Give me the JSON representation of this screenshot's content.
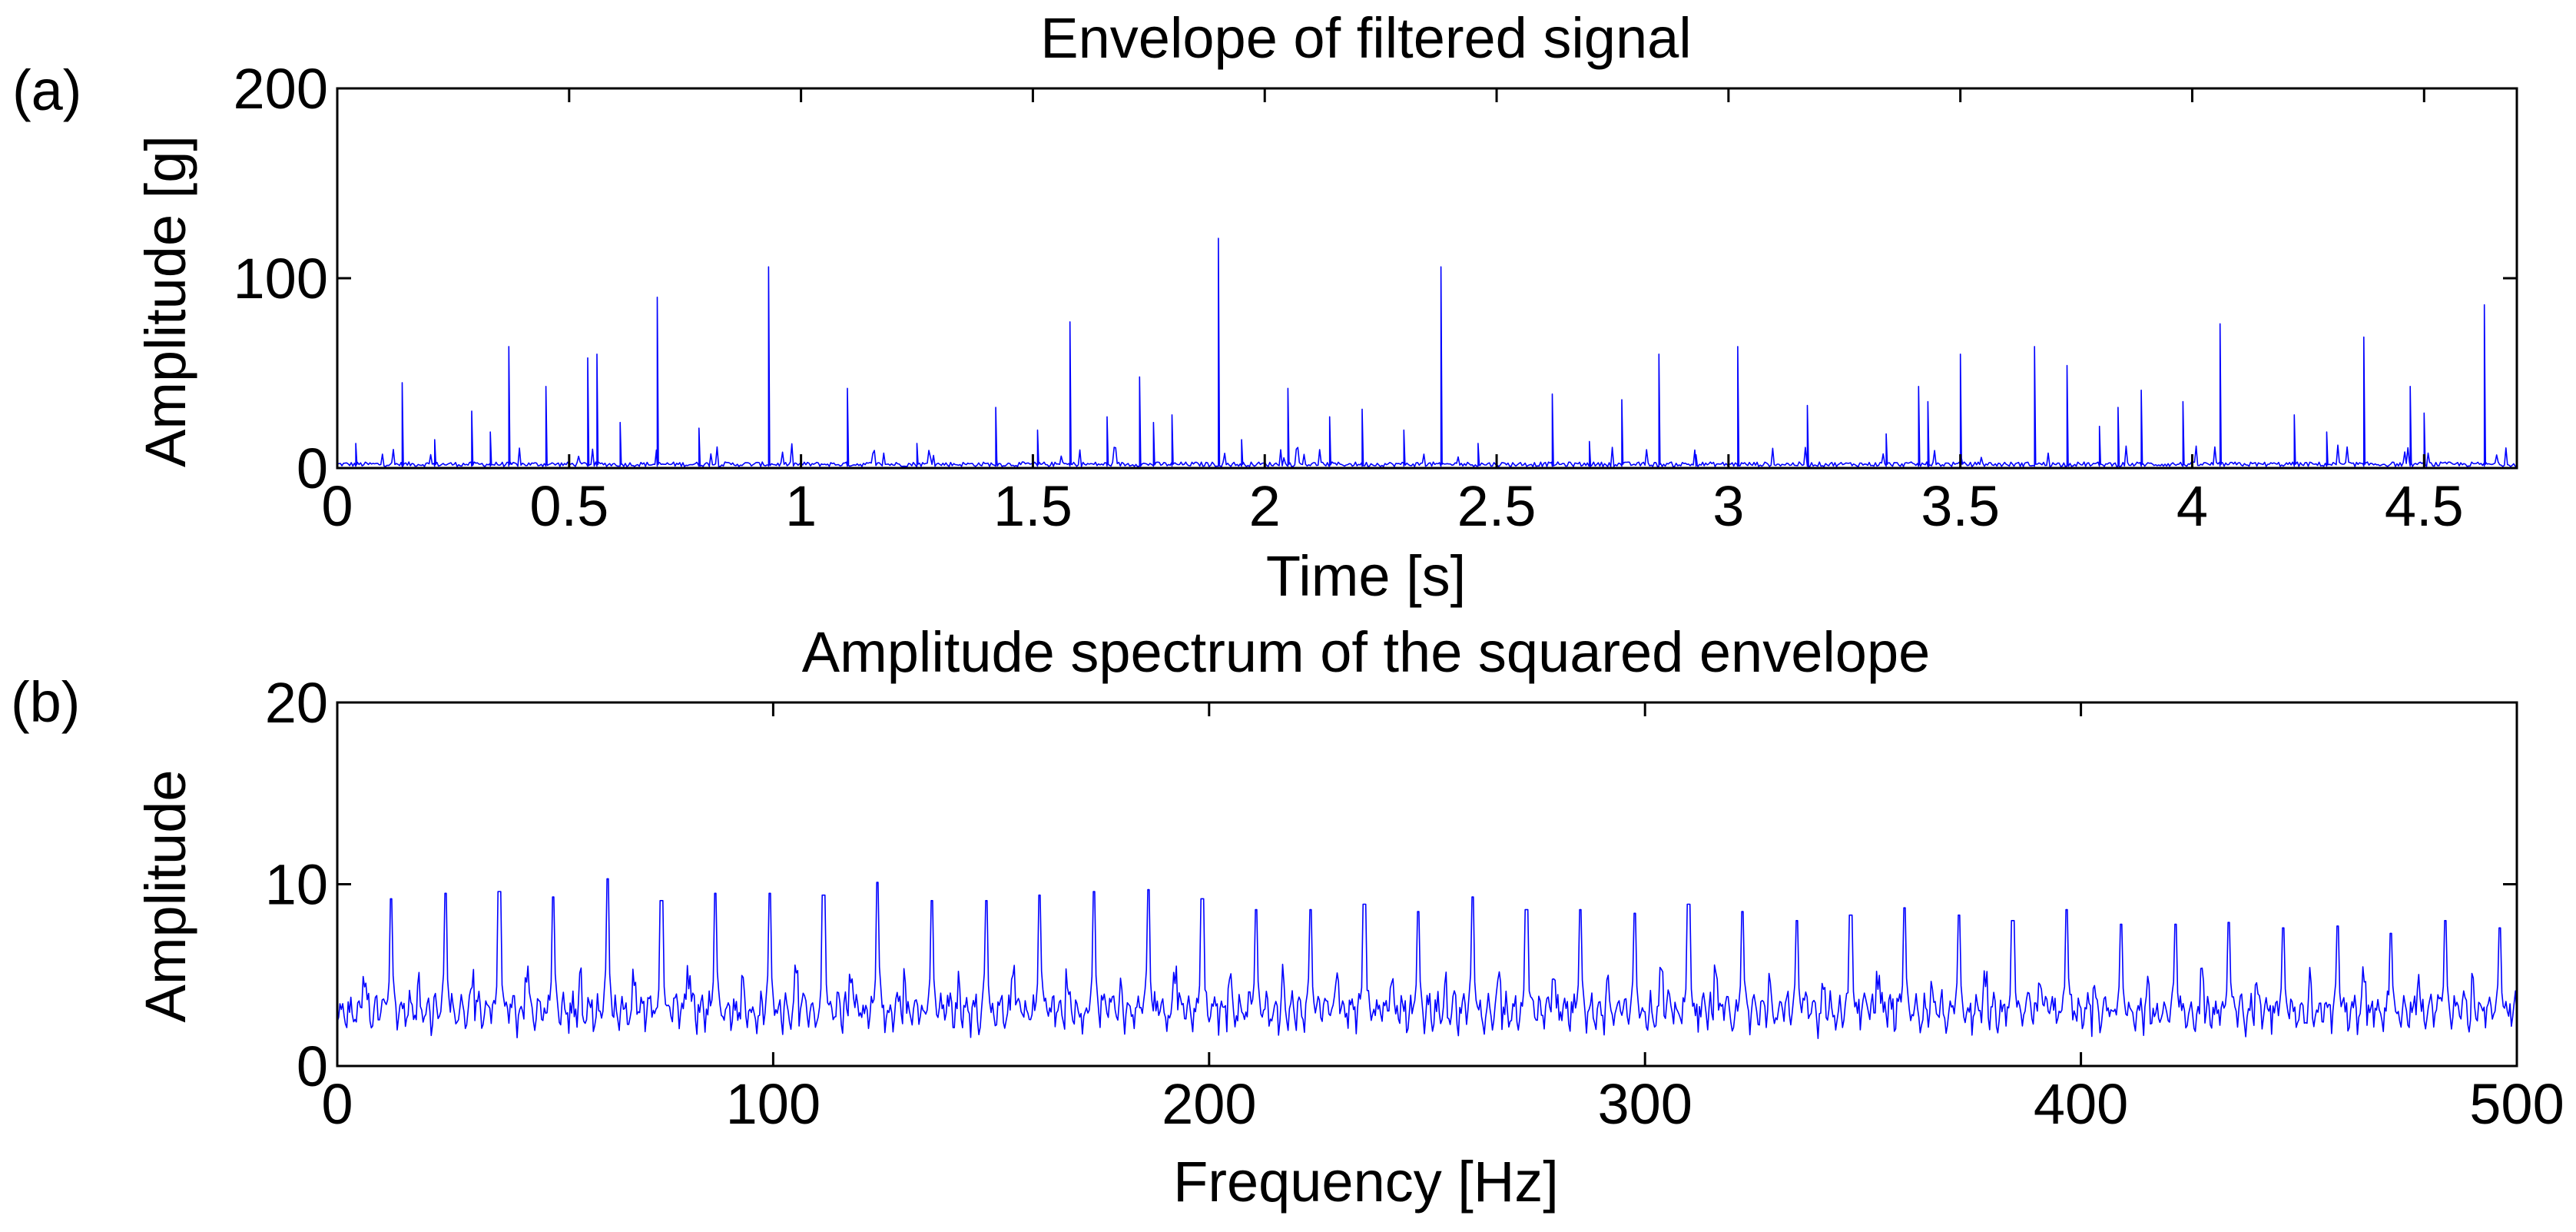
{
  "chart_data": [
    {
      "panel_label": "(a)",
      "type": "line",
      "title": "Envelope of filtered signal",
      "xlabel": "Time [s]",
      "ylabel": "Amplitude [g]",
      "xlim": [
        0,
        4.7
      ],
      "ylim": [
        0,
        200
      ],
      "xticks": [
        0,
        0.5,
        1,
        1.5,
        2,
        2.5,
        3,
        3.5,
        4,
        4.5
      ],
      "xtick_labels": [
        "0",
        "0.5",
        "1",
        "1.5",
        "2",
        "2.5",
        "3",
        "3.5",
        "4",
        "4.5"
      ],
      "yticks": [
        0,
        100,
        200
      ],
      "ytick_labels": [
        "0",
        "100",
        "200"
      ],
      "grid": false,
      "line_color": "#0000ff",
      "baseline_level": 2,
      "impulse_times": [
        0.04,
        0.14,
        0.21,
        0.29,
        0.33,
        0.37,
        0.45,
        0.54,
        0.56,
        0.61,
        0.69,
        0.78,
        0.93,
        1.1,
        1.25,
        1.42,
        1.51,
        1.58,
        1.66,
        1.73,
        1.76,
        1.8,
        1.9,
        1.95,
        2.05,
        2.14,
        2.21,
        2.3,
        2.38,
        2.46,
        2.62,
        2.7,
        2.77,
        2.85,
        2.93,
        3.02,
        3.17,
        3.34,
        3.41,
        3.43,
        3.5,
        3.66,
        3.73,
        3.8,
        3.84,
        3.89,
        3.98,
        4.06,
        4.22,
        4.29,
        4.37,
        4.47,
        4.5,
        4.63
      ],
      "impulse_amplitudes": [
        13,
        45,
        15,
        30,
        19,
        64,
        43,
        58,
        60,
        24,
        90,
        21,
        106,
        42,
        13,
        32,
        20,
        77,
        27,
        48,
        24,
        28,
        121,
        15,
        42,
        27,
        31,
        20,
        106,
        13,
        39,
        14,
        36,
        60,
        7,
        64,
        33,
        18,
        43,
        35,
        60,
        64,
        54,
        22,
        32,
        41,
        35,
        76,
        28,
        19,
        69,
        43,
        29,
        86
      ]
    },
    {
      "panel_label": "(b)",
      "type": "line",
      "title": "Amplitude spectrum of the squared envelope",
      "xlabel": "Frequency [Hz]",
      "ylabel": "Amplitude",
      "xlim": [
        0,
        500
      ],
      "ylim": [
        0,
        20
      ],
      "xticks": [
        0,
        100,
        200,
        300,
        400,
        500
      ],
      "xtick_labels": [
        "0",
        "100",
        "200",
        "300",
        "400",
        "500"
      ],
      "yticks": [
        0,
        10,
        20
      ],
      "ytick_labels": [
        "0",
        "10",
        "20"
      ],
      "grid": false,
      "line_color": "#0000ff",
      "noise_floor_range": [
        1.2,
        4.2
      ],
      "peak_frequencies": [
        12.4,
        24.8,
        37.2,
        49.6,
        62,
        74.4,
        86.8,
        99.2,
        111.6,
        124,
        136.4,
        148.8,
        161.2,
        173.6,
        186,
        198.4,
        210.8,
        223.2,
        235.6,
        248,
        260.4,
        272.8,
        285.2,
        297.6,
        310,
        322.4,
        334.8,
        347.2,
        359.6,
        372,
        384.4,
        396.8,
        409.2,
        421.6,
        434,
        446.4,
        458.8,
        471.2,
        483.6,
        496
      ],
      "peak_amplitudes": [
        9.2,
        9.5,
        9.6,
        9.3,
        10.3,
        9.1,
        9.5,
        9.5,
        9.4,
        10.1,
        9.1,
        9.1,
        9.4,
        9.6,
        9.7,
        9.2,
        8.6,
        8.6,
        8.9,
        8.5,
        9.3,
        8.6,
        8.6,
        8.4,
        8.9,
        8.5,
        8.0,
        8.3,
        8.7,
        8.3,
        8.0,
        8.6,
        7.8,
        7.8,
        7.9,
        7.6,
        7.7,
        7.3,
        8.0,
        7.6
      ]
    }
  ]
}
